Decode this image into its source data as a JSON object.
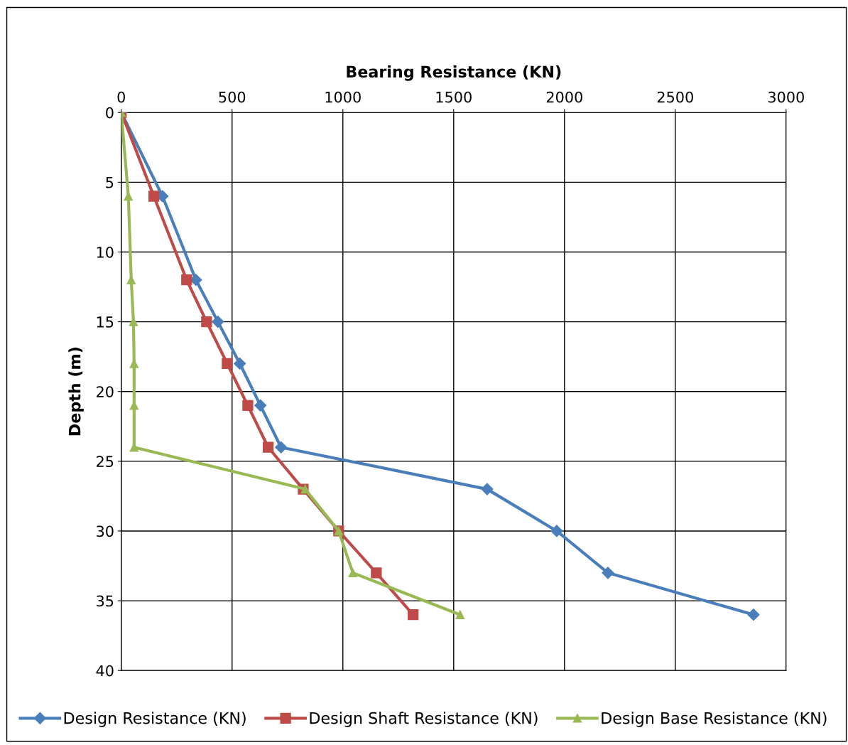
{
  "chart_data": {
    "type": "line",
    "xlabel": "Bearing Resistance (KN)",
    "ylabel": "Depth (m)",
    "xlim": [
      0,
      3000
    ],
    "xticks": [
      0,
      500,
      1000,
      1500,
      2000,
      2500,
      3000
    ],
    "ylim": [
      40,
      0
    ],
    "yticks": [
      0,
      5,
      10,
      15,
      20,
      25,
      30,
      35,
      40
    ],
    "grid": true,
    "legend": "bottom",
    "series": [
      {
        "name": "Design Resistance (KN)",
        "color": "#4a7ebb",
        "marker": "diamond",
        "x": [
          0,
          186,
          337,
          436,
          535,
          628,
          721,
          1651,
          1965,
          2196,
          2853
        ],
        "values": [
          0,
          6,
          12,
          15,
          18,
          21,
          24,
          27,
          30,
          33,
          36
        ]
      },
      {
        "name": "Design Shaft Resistance (KN)",
        "color": "#be4b48",
        "marker": "square",
        "x": [
          0,
          147,
          295,
          385,
          478,
          571,
          663,
          821,
          981,
          1151,
          1317
        ],
        "values": [
          0,
          6,
          12,
          15,
          18,
          21,
          24,
          27,
          30,
          33,
          36
        ]
      },
      {
        "name": "Design Base Resistance (KN)",
        "color": "#98b954",
        "marker": "triangle",
        "x": [
          0,
          32,
          45,
          55,
          58,
          58,
          58,
          830,
          981,
          1045,
          1529
        ],
        "values": [
          0,
          6,
          12,
          15,
          18,
          21,
          24,
          27,
          30,
          33,
          36
        ]
      }
    ]
  }
}
